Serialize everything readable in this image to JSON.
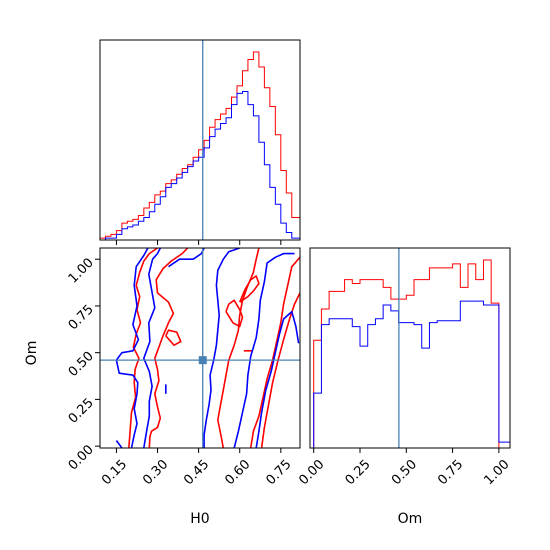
{
  "colors": {
    "red": "#ff0000",
    "blue": "#0000ff",
    "truth": "#4682b4"
  },
  "chart_data": [
    {
      "type": "histogram",
      "panel": "H0 marginal",
      "x_range": [
        0.09,
        0.82
      ],
      "x_ticks": [
        "0.15",
        "0.30",
        "0.45",
        "0.60",
        "0.75"
      ],
      "x_tick_values": [
        0.15,
        0.3,
        0.45,
        0.6,
        0.75
      ],
      "truth_x": 0.465,
      "bin_edges": [
        0.09,
        0.11,
        0.13,
        0.15,
        0.17,
        0.19,
        0.21,
        0.23,
        0.25,
        0.27,
        0.29,
        0.31,
        0.33,
        0.35,
        0.37,
        0.39,
        0.41,
        0.43,
        0.45,
        0.47,
        0.49,
        0.51,
        0.53,
        0.55,
        0.57,
        0.59,
        0.61,
        0.63,
        0.65,
        0.67,
        0.69,
        0.71,
        0.73,
        0.75,
        0.77,
        0.79,
        0.82
      ],
      "series": [
        {
          "color": "red",
          "values": [
            0.01,
            0.02,
            0.03,
            0.05,
            0.09,
            0.1,
            0.11,
            0.13,
            0.17,
            0.2,
            0.24,
            0.26,
            0.3,
            0.32,
            0.35,
            0.38,
            0.4,
            0.44,
            0.48,
            0.53,
            0.6,
            0.64,
            0.67,
            0.7,
            0.76,
            0.82,
            0.9,
            0.96,
            1.0,
            0.92,
            0.81,
            0.71,
            0.56,
            0.37,
            0.25,
            0.12
          ]
        },
        {
          "color": "blue",
          "values": [
            0.0,
            0.01,
            0.01,
            0.03,
            0.06,
            0.07,
            0.08,
            0.1,
            0.12,
            0.15,
            0.19,
            0.23,
            0.28,
            0.3,
            0.33,
            0.36,
            0.39,
            0.42,
            0.44,
            0.49,
            0.55,
            0.59,
            0.62,
            0.65,
            0.72,
            0.78,
            0.79,
            0.72,
            0.66,
            0.52,
            0.4,
            0.28,
            0.19,
            0.09,
            0.04,
            0.01
          ]
        }
      ]
    },
    {
      "type": "contour",
      "panel": "H0 vs Om",
      "xlabel": "H0",
      "ylabel": "Om",
      "x_range": [
        0.09,
        0.82
      ],
      "y_range": [
        -0.01,
        1.06
      ],
      "x_ticks": [
        "0.15",
        "0.30",
        "0.45",
        "0.60",
        "0.75"
      ],
      "x_tick_values": [
        0.15,
        0.3,
        0.45,
        0.6,
        0.75
      ],
      "y_ticks": [
        "0.00",
        "0.25",
        "0.50",
        "0.75",
        "1.00"
      ],
      "y_tick_values": [
        0.0,
        0.25,
        0.5,
        0.75,
        1.0
      ],
      "truth_point": [
        0.465,
        0.46
      ],
      "series": [
        {
          "color": "red",
          "contours": [
            [
              [
                0.195,
                -0.01
              ],
              [
                0.2,
                0.08
              ],
              [
                0.205,
                0.18
              ],
              [
                0.22,
                0.26
              ],
              [
                0.215,
                0.34
              ],
              [
                0.218,
                0.41
              ],
              [
                0.232,
                0.47
              ],
              [
                0.212,
                0.53
              ],
              [
                0.222,
                0.6
              ],
              [
                0.238,
                0.66
              ],
              [
                0.225,
                0.73
              ],
              [
                0.235,
                0.8
              ],
              [
                0.222,
                0.86
              ],
              [
                0.235,
                0.93
              ],
              [
                0.25,
                0.99
              ],
              [
                0.27,
                1.03
              ],
              [
                0.3,
                1.06
              ]
            ],
            [
              [
                0.27,
                -0.01
              ],
              [
                0.272,
                0.05
              ],
              [
                0.278,
                0.08
              ],
              [
                0.3,
                0.1
              ],
              [
                0.31,
                0.15
              ],
              [
                0.3,
                0.21
              ],
              [
                0.29,
                0.28
              ],
              [
                0.305,
                0.35
              ],
              [
                0.3,
                0.41
              ],
              [
                0.29,
                0.47
              ],
              [
                0.305,
                0.53
              ],
              [
                0.32,
                0.59
              ],
              [
                0.34,
                0.66
              ],
              [
                0.358,
                0.71
              ],
              [
                0.34,
                0.77
              ],
              [
                0.3,
                0.82
              ],
              [
                0.295,
                0.89
              ],
              [
                0.32,
                0.95
              ],
              [
                0.35,
                0.99
              ],
              [
                0.39,
                1.03
              ],
              [
                0.41,
                1.06
              ]
            ],
            [
              [
                0.33,
                0.59
              ],
              [
                0.36,
                0.54
              ],
              [
                0.385,
                0.56
              ],
              [
                0.37,
                0.61
              ],
              [
                0.34,
                0.62
              ],
              [
                0.33,
                0.59
              ]
            ],
            [
              [
                0.54,
                -0.01
              ],
              [
                0.53,
                0.07
              ],
              [
                0.52,
                0.14
              ],
              [
                0.53,
                0.22
              ],
              [
                0.54,
                0.3
              ],
              [
                0.55,
                0.38
              ],
              [
                0.56,
                0.46
              ],
              [
                0.58,
                0.54
              ],
              [
                0.595,
                0.62
              ],
              [
                0.6,
                0.7
              ],
              [
                0.61,
                0.78
              ],
              [
                0.63,
                0.86
              ],
              [
                0.65,
                0.93
              ],
              [
                0.66,
                1.0
              ],
              [
                0.67,
                1.06
              ]
            ],
            [
              [
                0.55,
                0.72
              ],
              [
                0.575,
                0.66
              ],
              [
                0.6,
                0.64
              ],
              [
                0.61,
                0.69
              ],
              [
                0.6,
                0.73
              ],
              [
                0.58,
                0.78
              ],
              [
                0.56,
                0.76
              ],
              [
                0.55,
                0.72
              ]
            ],
            [
              [
                0.6,
                0.77
              ],
              [
                0.62,
                0.84
              ],
              [
                0.64,
                0.89
              ],
              [
                0.66,
                0.91
              ],
              [
                0.67,
                0.87
              ],
              [
                0.65,
                0.83
              ],
              [
                0.63,
                0.8
              ],
              [
                0.6,
                0.77
              ]
            ],
            [
              [
                0.64,
                -0.01
              ],
              [
                0.65,
                0.08
              ],
              [
                0.67,
                0.16
              ],
              [
                0.685,
                0.26
              ],
              [
                0.7,
                0.36
              ],
              [
                0.72,
                0.46
              ],
              [
                0.735,
                0.56
              ],
              [
                0.75,
                0.66
              ],
              [
                0.76,
                0.76
              ],
              [
                0.775,
                0.86
              ],
              [
                0.79,
                0.96
              ],
              [
                0.82,
                1.01
              ]
            ],
            [
              [
                0.68,
                -0.01
              ],
              [
                0.69,
                0.1
              ],
              [
                0.705,
                0.22
              ],
              [
                0.72,
                0.34
              ],
              [
                0.74,
                0.46
              ],
              [
                0.76,
                0.57
              ],
              [
                0.78,
                0.67
              ],
              [
                0.8,
                0.76
              ],
              [
                0.82,
                0.82
              ]
            ],
            [
              [
                0.615,
                0.51
              ],
              [
                0.645,
                0.51
              ]
            ]
          ]
        },
        {
          "color": "blue",
          "contours": [
            [
              [
                0.15,
                0.03
              ],
              [
                0.17,
                -0.01
              ]
            ],
            [
              [
                0.205,
                -0.01
              ],
              [
                0.215,
                0.06
              ],
              [
                0.225,
                0.12
              ],
              [
                0.215,
                0.2
              ],
              [
                0.225,
                0.28
              ],
              [
                0.228,
                0.34
              ],
              [
                0.21,
                0.38
              ],
              [
                0.16,
                0.39
              ],
              [
                0.15,
                0.46
              ],
              [
                0.17,
                0.5
              ],
              [
                0.21,
                0.51
              ],
              [
                0.23,
                0.57
              ],
              [
                0.21,
                0.65
              ],
              [
                0.225,
                0.75
              ],
              [
                0.215,
                0.86
              ],
              [
                0.222,
                0.96
              ],
              [
                0.25,
                1.02
              ],
              [
                0.265,
                1.06
              ]
            ],
            [
              [
                0.25,
                -0.01
              ],
              [
                0.26,
                0.08
              ],
              [
                0.27,
                0.16
              ],
              [
                0.27,
                0.24
              ],
              [
                0.28,
                0.32
              ],
              [
                0.27,
                0.4
              ],
              [
                0.25,
                0.47
              ],
              [
                0.272,
                0.56
              ],
              [
                0.268,
                0.66
              ],
              [
                0.29,
                0.74
              ],
              [
                0.278,
                0.84
              ],
              [
                0.268,
                0.92
              ],
              [
                0.282,
                1.0
              ],
              [
                0.3,
                1.03
              ],
              [
                0.31,
                1.06
              ]
            ],
            [
              [
                0.33,
                0.28
              ],
              [
                0.33,
                0.33
              ]
            ],
            [
              [
                0.34,
                0.96
              ],
              [
                0.38,
                1.0
              ],
              [
                0.43,
                1.0
              ],
              [
                0.46,
                1.03
              ],
              [
                0.47,
                1.06
              ]
            ],
            [
              [
                0.47,
                -0.01
              ],
              [
                0.47,
                0.06
              ],
              [
                0.478,
                0.14
              ],
              [
                0.488,
                0.22
              ],
              [
                0.495,
                0.3
              ],
              [
                0.492,
                0.38
              ],
              [
                0.505,
                0.46
              ],
              [
                0.515,
                0.54
              ],
              [
                0.52,
                0.62
              ],
              [
                0.525,
                0.7
              ],
              [
                0.52,
                0.78
              ],
              [
                0.515,
                0.86
              ],
              [
                0.52,
                0.94
              ],
              [
                0.54,
                1.0
              ],
              [
                0.56,
                1.04
              ],
              [
                0.6,
                1.06
              ]
            ],
            [
              [
                0.58,
                -0.01
              ],
              [
                0.595,
                0.08
              ],
              [
                0.61,
                0.18
              ],
              [
                0.625,
                0.28
              ],
              [
                0.63,
                0.38
              ],
              [
                0.64,
                0.48
              ],
              [
                0.66,
                0.58
              ],
              [
                0.67,
                0.68
              ],
              [
                0.675,
                0.78
              ],
              [
                0.69,
                0.88
              ],
              [
                0.7,
                0.98
              ],
              [
                0.73,
                1.01
              ],
              [
                0.76,
                1.03
              ],
              [
                0.8,
                1.03
              ]
            ],
            [
              [
                0.66,
                -0.01
              ],
              [
                0.67,
                0.08
              ],
              [
                0.68,
                0.18
              ],
              [
                0.695,
                0.3
              ],
              [
                0.715,
                0.4
              ],
              [
                0.73,
                0.5
              ],
              [
                0.745,
                0.6
              ],
              [
                0.76,
                0.68
              ],
              [
                0.79,
                0.72
              ],
              [
                0.805,
                0.64
              ],
              [
                0.815,
                0.55
              ]
            ]
          ]
        }
      ]
    },
    {
      "type": "histogram",
      "panel": "Om marginal",
      "xlabel": "Om",
      "x_range": [
        -0.02,
        1.06
      ],
      "x_ticks": [
        "0.00",
        "0.25",
        "0.50",
        "0.75",
        "1.00"
      ],
      "x_tick_values": [
        0.0,
        0.25,
        0.5,
        0.75,
        1.0
      ],
      "truth_x": 0.46,
      "bin_edges": [
        0.0,
        0.0417,
        0.0833,
        0.125,
        0.1667,
        0.2083,
        0.25,
        0.2917,
        0.3333,
        0.375,
        0.4167,
        0.4583,
        0.5,
        0.5417,
        0.5833,
        0.625,
        0.6667,
        0.7083,
        0.75,
        0.7917,
        0.8333,
        0.875,
        0.9167,
        0.9583,
        1.0,
        1.06
      ],
      "series": [
        {
          "color": "red",
          "values": [
            0.55,
            0.71,
            0.8,
            0.8,
            0.86,
            0.84,
            0.86,
            0.86,
            0.86,
            0.82,
            0.76,
            0.76,
            0.78,
            0.86,
            0.86,
            0.92,
            0.92,
            0.92,
            0.94,
            0.82,
            0.94,
            0.86,
            0.96,
            0.74,
            0.0
          ]
        },
        {
          "color": "blue",
          "values": [
            0.28,
            0.63,
            0.66,
            0.66,
            0.66,
            0.62,
            0.52,
            0.63,
            0.66,
            0.73,
            0.7,
            0.64,
            0.64,
            0.63,
            0.51,
            0.64,
            0.65,
            0.65,
            0.65,
            0.75,
            0.75,
            0.75,
            0.73,
            0.73,
            0.03
          ]
        }
      ]
    }
  ]
}
